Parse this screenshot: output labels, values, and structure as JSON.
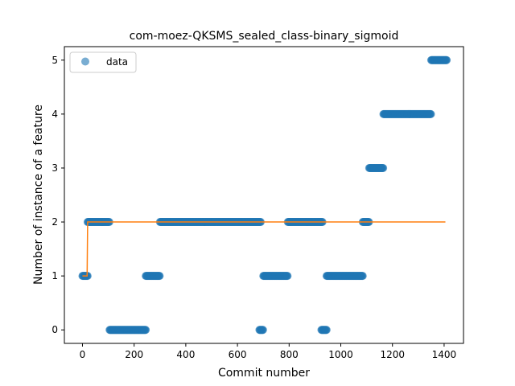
{
  "chart_data": {
    "type": "scatter",
    "title": "com-moez-QKSMS_sealed_class-binary_sigmoid",
    "xlabel": "Commit number",
    "ylabel": "Number of instance of a feature",
    "xlim": [
      -70,
      1475
    ],
    "ylim": [
      -0.25,
      5.25
    ],
    "xticks": [
      0,
      200,
      400,
      600,
      800,
      1000,
      1200,
      1400
    ],
    "yticks": [
      0,
      1,
      2,
      3,
      4,
      5
    ],
    "grid": false,
    "legend": {
      "placement": "top-left",
      "entries": [
        "data"
      ]
    },
    "colors": {
      "data": "#1f77b4",
      "fit": "#ff7f0e"
    },
    "series": [
      {
        "name": "data",
        "kind": "scatter",
        "segments": [
          {
            "x_start": 0,
            "x_end": 20,
            "y": 1
          },
          {
            "x_start": 20,
            "x_end": 105,
            "y": 2
          },
          {
            "x_start": 105,
            "x_end": 245,
            "y": 0
          },
          {
            "x_start": 245,
            "x_end": 300,
            "y": 1
          },
          {
            "x_start": 300,
            "x_end": 690,
            "y": 2
          },
          {
            "x_start": 685,
            "x_end": 700,
            "y": 0
          },
          {
            "x_start": 700,
            "x_end": 795,
            "y": 1
          },
          {
            "x_start": 795,
            "x_end": 930,
            "y": 2
          },
          {
            "x_start": 925,
            "x_end": 945,
            "y": 0
          },
          {
            "x_start": 945,
            "x_end": 1085,
            "y": 1
          },
          {
            "x_start": 1085,
            "x_end": 1110,
            "y": 2
          },
          {
            "x_start": 1110,
            "x_end": 1165,
            "y": 3
          },
          {
            "x_start": 1165,
            "x_end": 1350,
            "y": 4
          },
          {
            "x_start": 1350,
            "x_end": 1410,
            "y": 5
          }
        ]
      },
      {
        "kind": "line",
        "points": [
          [
            0,
            1
          ],
          [
            18,
            1
          ],
          [
            20,
            2
          ],
          [
            1405,
            2
          ]
        ]
      }
    ]
  }
}
